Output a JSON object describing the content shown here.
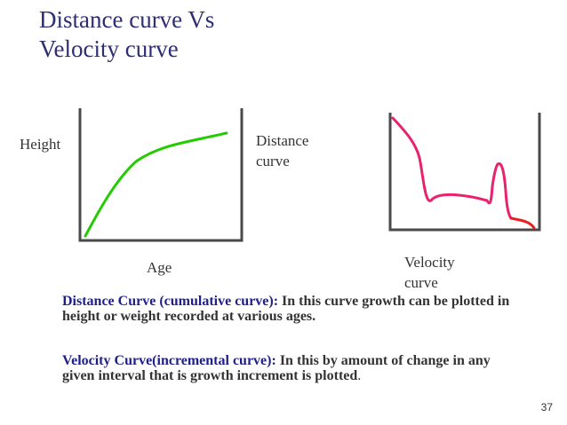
{
  "slide": {
    "title_line1": "Distance curve Vs",
    "title_line2": "Velocity curve",
    "number": "37"
  },
  "distance_chart": {
    "ylabel": "Height",
    "xlabel": "Age",
    "series_label_line1": "Distance",
    "series_label_line2": "curve",
    "line_color": "#22cc00",
    "axis_color": "#4a4a4a"
  },
  "velocity_chart": {
    "series_label_line1": "Velocity",
    "series_label_line2": "curve",
    "line_color": "#e8226e",
    "tail_color": "#e82020",
    "axis_color": "#4a4a4a"
  },
  "definitions": {
    "distance_term": "Distance Curve (cumulative curve)",
    "distance_colon": ": ",
    "distance_text": "In this curve growth can be plotted in height or weight recorded at various ages.",
    "velocity_term": "Velocity Curve(incremental curve):",
    "velocity_text": "  In this by amount of change in any given interval that is growth increment is plotted",
    "velocity_end": "."
  }
}
